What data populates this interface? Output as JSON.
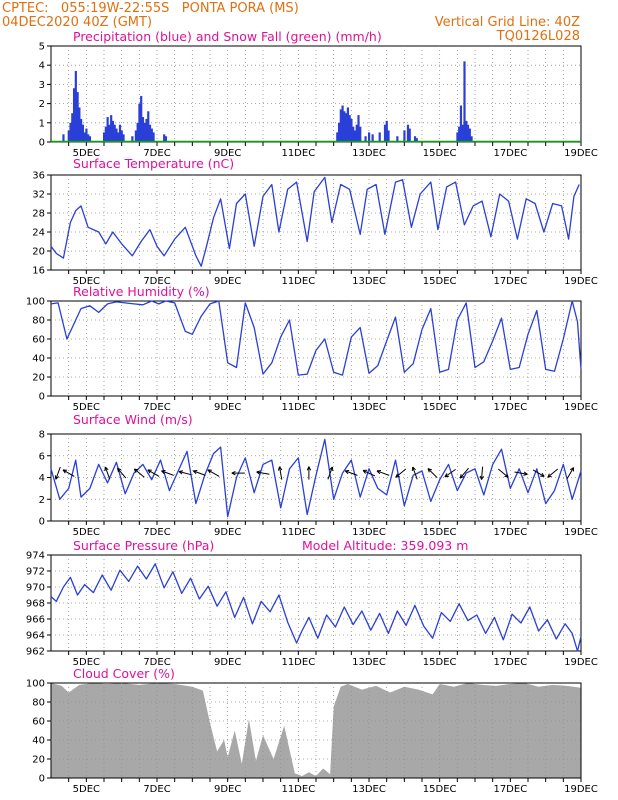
{
  "header": {
    "line1_left": "CPTEC:   055:19W-22:55S   PONTA PORA (MS)",
    "line2_left": "04DEC2020 40Z (GMT)",
    "line2_right": "Vertical Grid Line: 40Z",
    "code": "TQ0126L028"
  },
  "colors": {
    "header": "#e07010",
    "title": "#e0109a",
    "line": "#2a3fd8",
    "snow": "#10a010",
    "cloud": "#a8a8a8",
    "grid": "#909090"
  },
  "date_ticks": [
    "5DEC",
    "7DEC",
    "9DEC",
    "11DEC",
    "13DEC",
    "15DEC",
    "17DEC",
    "19DEC"
  ],
  "chart_data": [
    {
      "type": "bar",
      "title": "Precipitation (blue) and Snow Fall (green) (mm/h)",
      "x_range": [
        4.0,
        19.0
      ],
      "ylim": [
        0,
        5
      ],
      "yticks": [
        0,
        1,
        2,
        3,
        4,
        5
      ],
      "series": [
        {
          "name": "Precipitation (blue)",
          "x": [
            4.35,
            4.5,
            4.55,
            4.6,
            4.65,
            4.7,
            4.75,
            4.8,
            4.85,
            4.9,
            4.95,
            5.0,
            5.05,
            5.1,
            5.5,
            5.55,
            5.6,
            5.65,
            5.7,
            5.75,
            5.8,
            5.85,
            5.9,
            5.95,
            6.0,
            6.05,
            6.3,
            6.4,
            6.45,
            6.5,
            6.55,
            6.6,
            6.65,
            6.7,
            6.75,
            6.8,
            6.85,
            6.9,
            7.2,
            7.25,
            12.1,
            12.15,
            12.2,
            12.25,
            12.3,
            12.35,
            12.4,
            12.45,
            12.5,
            12.55,
            12.6,
            12.65,
            12.7,
            12.75,
            12.9,
            13.0,
            13.1,
            13.3,
            13.45,
            13.5,
            13.55,
            13.8,
            14.0,
            14.1,
            14.15,
            14.3,
            14.35,
            15.5,
            15.55,
            15.6,
            15.65,
            15.7,
            15.75,
            15.8,
            15.85,
            15.9
          ],
          "values": [
            0.4,
            0.6,
            1.0,
            1.5,
            2.8,
            3.7,
            2.6,
            1.8,
            1.2,
            0.9,
            0.5,
            0.7,
            0.4,
            0.3,
            0.5,
            0.8,
            1.3,
            0.9,
            1.4,
            1.1,
            0.9,
            0.7,
            0.5,
            0.9,
            0.6,
            0.4,
            0.3,
            0.6,
            1.0,
            2.0,
            2.4,
            1.3,
            1.0,
            1.2,
            1.6,
            0.9,
            0.7,
            0.5,
            0.4,
            0.3,
            0.5,
            1.0,
            1.7,
            1.9,
            1.6,
            1.5,
            1.8,
            1.4,
            1.2,
            0.8,
            0.6,
            0.9,
            1.4,
            0.8,
            0.3,
            0.5,
            0.4,
            0.5,
            0.9,
            1.1,
            0.6,
            0.3,
            0.6,
            0.9,
            0.7,
            0.3,
            0.2,
            0.5,
            0.8,
            1.9,
            0.9,
            4.2,
            1.1,
            0.9,
            0.7,
            0.3
          ]
        },
        {
          "name": "Snow Fall (green)",
          "values": [
            0,
            0
          ]
        }
      ]
    },
    {
      "type": "line",
      "title": "Surface Temperature (nC)",
      "x_range": [
        4.0,
        19.0
      ],
      "ylim": [
        16,
        36
      ],
      "yticks": [
        16,
        20,
        24,
        28,
        32,
        36
      ],
      "x": [
        4.0,
        4.15,
        4.35,
        4.55,
        4.7,
        4.85,
        5.05,
        5.35,
        5.55,
        5.75,
        6.0,
        6.3,
        6.55,
        6.8,
        7.0,
        7.2,
        7.5,
        7.8,
        8.1,
        8.25,
        8.4,
        8.6,
        8.8,
        9.05,
        9.25,
        9.5,
        9.75,
        10.0,
        10.25,
        10.45,
        10.7,
        10.95,
        11.25,
        11.45,
        11.75,
        11.95,
        12.2,
        12.45,
        12.75,
        12.95,
        13.2,
        13.45,
        13.75,
        13.95,
        14.2,
        14.45,
        14.75,
        14.95,
        15.2,
        15.45,
        15.7,
        15.95,
        16.2,
        16.45,
        16.7,
        16.95,
        17.2,
        17.45,
        17.7,
        17.95,
        18.2,
        18.45,
        18.65,
        18.8,
        18.95
      ],
      "y": [
        21.0,
        19.5,
        18.5,
        26.0,
        28.5,
        29.5,
        25.0,
        24.0,
        21.5,
        24.0,
        21.5,
        19.0,
        22.0,
        24.5,
        21.0,
        19.0,
        22.5,
        25.0,
        19.0,
        16.8,
        21.0,
        27.0,
        31.0,
        20.5,
        30.0,
        32.0,
        21.0,
        31.5,
        34.0,
        24.0,
        33.0,
        34.5,
        22.0,
        32.5,
        35.5,
        26.0,
        34.0,
        33.0,
        23.5,
        33.0,
        34.0,
        23.5,
        34.5,
        35.0,
        25.0,
        32.0,
        34.5,
        24.5,
        33.5,
        34.5,
        25.5,
        29.5,
        30.5,
        23.0,
        32.0,
        30.5,
        22.5,
        31.0,
        30.0,
        24.0,
        30.0,
        29.5,
        22.5,
        31.5,
        34.0
      ]
    },
    {
      "type": "line",
      "title": "Relative Humidity (%)",
      "x_range": [
        4.0,
        19.0
      ],
      "ylim": [
        0,
        100
      ],
      "yticks": [
        0,
        20,
        40,
        60,
        80,
        100
      ],
      "x": [
        4.0,
        4.2,
        4.45,
        4.6,
        4.85,
        5.1,
        5.35,
        5.6,
        5.85,
        6.1,
        6.35,
        6.6,
        6.85,
        7.05,
        7.25,
        7.5,
        7.8,
        8.0,
        8.25,
        8.5,
        8.75,
        9.0,
        9.25,
        9.5,
        9.75,
        10.0,
        10.25,
        10.5,
        10.75,
        11.0,
        11.25,
        11.5,
        11.75,
        12.0,
        12.25,
        12.5,
        12.75,
        13.0,
        13.25,
        13.5,
        13.75,
        14.0,
        14.25,
        14.5,
        14.75,
        15.0,
        15.25,
        15.5,
        15.75,
        16.0,
        16.25,
        16.5,
        16.75,
        17.0,
        17.25,
        17.5,
        17.75,
        18.0,
        18.25,
        18.5,
        18.75,
        18.9,
        19.0
      ],
      "y": [
        97,
        98,
        60,
        72,
        92,
        95,
        88,
        97,
        99,
        98,
        97,
        96,
        100,
        97,
        100,
        98,
        68,
        65,
        84,
        97,
        100,
        35,
        30,
        98,
        72,
        23,
        35,
        62,
        80,
        22,
        23,
        48,
        60,
        25,
        22,
        62,
        72,
        24,
        32,
        58,
        83,
        25,
        34,
        70,
        92,
        25,
        28,
        80,
        98,
        30,
        36,
        58,
        82,
        28,
        30,
        65,
        90,
        28,
        26,
        60,
        100,
        78,
        28
      ]
    },
    {
      "type": "line",
      "title": "Surface Wind (m/s)",
      "x_range": [
        4.0,
        19.0
      ],
      "ylim": [
        0,
        8
      ],
      "yticks": [
        0,
        2,
        4,
        6,
        8
      ],
      "x": [
        4.0,
        4.25,
        4.5,
        4.7,
        4.85,
        5.1,
        5.35,
        5.6,
        5.85,
        6.1,
        6.35,
        6.6,
        6.85,
        7.1,
        7.35,
        7.6,
        7.85,
        8.1,
        8.35,
        8.6,
        8.8,
        9.0,
        9.25,
        9.5,
        9.75,
        10.0,
        10.25,
        10.5,
        10.75,
        11.0,
        11.25,
        11.5,
        11.75,
        12.0,
        12.25,
        12.5,
        12.75,
        13.0,
        13.25,
        13.5,
        13.75,
        14.0,
        14.25,
        14.5,
        14.75,
        15.0,
        15.25,
        15.5,
        15.75,
        16.0,
        16.25,
        16.5,
        16.75,
        17.0,
        17.25,
        17.5,
        17.75,
        18.0,
        18.25,
        18.5,
        18.75,
        19.0
      ],
      "y": [
        4.8,
        2.0,
        3.0,
        5.6,
        2.2,
        3.0,
        5.2,
        3.5,
        5.4,
        2.5,
        4.4,
        5.2,
        3.8,
        5.6,
        2.8,
        4.6,
        6.4,
        1.6,
        4.2,
        6.2,
        6.8,
        0.4,
        4.0,
        5.8,
        2.6,
        5.2,
        5.6,
        1.2,
        4.8,
        5.8,
        0.6,
        4.2,
        7.5,
        2.0,
        4.4,
        5.6,
        2.2,
        4.8,
        3.0,
        2.4,
        5.6,
        1.4,
        4.2,
        4.6,
        1.8,
        3.8,
        5.2,
        2.8,
        4.4,
        4.8,
        2.4,
        5.2,
        6.6,
        3.0,
        4.8,
        2.6,
        4.8,
        1.6,
        2.8,
        5.2,
        2.0,
        4.6
      ],
      "arrows": [
        {
          "x": 4.2,
          "dir_deg": 250
        },
        {
          "x": 4.5,
          "dir_deg": 150
        },
        {
          "x": 5.6,
          "dir_deg": 110
        },
        {
          "x": 6.0,
          "dir_deg": 130
        },
        {
          "x": 6.5,
          "dir_deg": 140
        },
        {
          "x": 6.9,
          "dir_deg": 150
        },
        {
          "x": 7.3,
          "dir_deg": 160
        },
        {
          "x": 7.8,
          "dir_deg": 165
        },
        {
          "x": 8.2,
          "dir_deg": 160
        },
        {
          "x": 8.6,
          "dir_deg": 150
        },
        {
          "x": 9.3,
          "dir_deg": 180
        },
        {
          "x": 10.0,
          "dir_deg": 170
        },
        {
          "x": 10.5,
          "dir_deg": 100
        },
        {
          "x": 11.3,
          "dir_deg": 90
        },
        {
          "x": 11.9,
          "dir_deg": 70
        },
        {
          "x": 12.5,
          "dir_deg": 160
        },
        {
          "x": 13.0,
          "dir_deg": 155
        },
        {
          "x": 13.4,
          "dir_deg": 160
        },
        {
          "x": 13.9,
          "dir_deg": 220
        },
        {
          "x": 14.3,
          "dir_deg": 110
        },
        {
          "x": 14.8,
          "dir_deg": 135
        },
        {
          "x": 15.3,
          "dir_deg": 215
        },
        {
          "x": 15.7,
          "dir_deg": 230
        },
        {
          "x": 16.2,
          "dir_deg": 265
        },
        {
          "x": 16.8,
          "dir_deg": 320
        },
        {
          "x": 17.3,
          "dir_deg": 350
        },
        {
          "x": 17.8,
          "dir_deg": 330
        },
        {
          "x": 18.2,
          "dir_deg": 220
        },
        {
          "x": 18.7,
          "dir_deg": 60
        }
      ]
    },
    {
      "type": "line",
      "title": "Surface Pressure (hPa)",
      "annotation": "Model Altitude: 359.093 m",
      "x_range": [
        4.0,
        19.0
      ],
      "ylim": [
        962,
        974
      ],
      "yticks": [
        962,
        964,
        966,
        968,
        970,
        972,
        974
      ],
      "x": [
        4.0,
        4.15,
        4.35,
        4.55,
        4.75,
        4.95,
        5.2,
        5.45,
        5.7,
        5.95,
        6.2,
        6.45,
        6.7,
        6.95,
        7.2,
        7.45,
        7.7,
        7.95,
        8.2,
        8.45,
        8.7,
        8.95,
        9.2,
        9.45,
        9.7,
        9.95,
        10.2,
        10.45,
        10.7,
        10.95,
        11.1,
        11.3,
        11.55,
        11.8,
        12.05,
        12.3,
        12.55,
        12.8,
        13.05,
        13.3,
        13.55,
        13.8,
        14.05,
        14.3,
        14.55,
        14.8,
        15.05,
        15.3,
        15.55,
        15.8,
        16.05,
        16.3,
        16.55,
        16.8,
        17.05,
        17.3,
        17.55,
        17.8,
        18.05,
        18.3,
        18.55,
        18.75,
        18.9,
        19.0
      ],
      "y": [
        968.8,
        968.2,
        970.0,
        971.2,
        969.0,
        970.3,
        969.3,
        971.5,
        969.6,
        972.1,
        970.7,
        972.6,
        971.0,
        972.9,
        969.9,
        971.9,
        969.2,
        971.1,
        968.5,
        970.1,
        967.6,
        969.4,
        966.2,
        968.7,
        965.4,
        968.2,
        966.9,
        969.0,
        965.6,
        963.0,
        964.5,
        966.2,
        963.6,
        966.5,
        965.0,
        967.5,
        965.3,
        967.0,
        964.6,
        966.7,
        964.2,
        967.0,
        965.2,
        967.7,
        965.1,
        963.6,
        966.8,
        965.7,
        967.9,
        965.8,
        966.5,
        964.2,
        966.2,
        963.4,
        966.6,
        965.5,
        967.5,
        964.5,
        965.9,
        963.5,
        965.4,
        964.2,
        962.0,
        963.8
      ]
    },
    {
      "type": "area",
      "title": "Cloud Cover (%)",
      "x_range": [
        4.0,
        19.0
      ],
      "ylim": [
        0,
        100
      ],
      "yticks": [
        0,
        20,
        40,
        60,
        80,
        100
      ],
      "x": [
        4.0,
        4.3,
        4.5,
        4.8,
        5.2,
        5.6,
        6.0,
        6.5,
        7.0,
        7.5,
        8.0,
        8.3,
        8.5,
        8.7,
        8.9,
        9.0,
        9.2,
        9.4,
        9.6,
        9.8,
        10.0,
        10.3,
        10.6,
        10.9,
        11.1,
        11.3,
        11.5,
        11.7,
        11.9,
        12.0,
        12.2,
        12.4,
        12.8,
        13.2,
        13.6,
        14.0,
        14.4,
        14.8,
        15.0,
        15.4,
        15.8,
        16.2,
        16.6,
        17.0,
        17.4,
        17.8,
        18.2,
        18.6,
        19.0
      ],
      "y": [
        100,
        97,
        90,
        98,
        100,
        99,
        100,
        98,
        100,
        99,
        96,
        92,
        58,
        28,
        40,
        22,
        50,
        15,
        62,
        18,
        45,
        20,
        55,
        5,
        2,
        6,
        2,
        10,
        4,
        75,
        96,
        99,
        93,
        97,
        90,
        96,
        93,
        88,
        99,
        96,
        100,
        98,
        97,
        99,
        100,
        96,
        98,
        97,
        95
      ]
    }
  ]
}
